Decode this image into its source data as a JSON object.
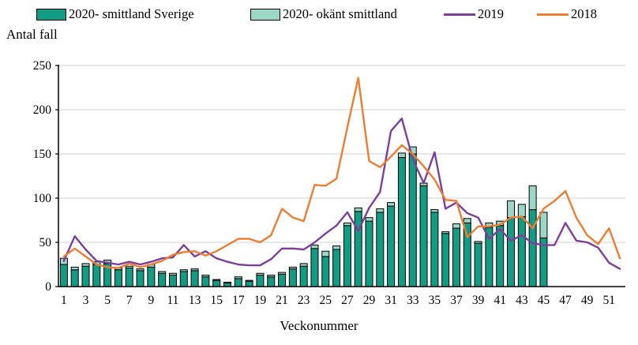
{
  "legend": [
    {
      "label": "2020- smittland Sverige",
      "type": "bar",
      "color": "#129C84"
    },
    {
      "label": "2020- okänt smittland",
      "type": "bar",
      "color": "#9CD6C6"
    },
    {
      "label": "2019",
      "type": "line",
      "color": "#7C3F9A"
    },
    {
      "label": "2018",
      "type": "line",
      "color": "#ED7D31"
    }
  ],
  "y_axis_title": "Antal fall",
  "x_axis_title": "Veckonummer",
  "chart_data": {
    "type": "bar+line combo",
    "title": "",
    "xlabel": "Veckonummer",
    "ylabel": "Antal fall",
    "ylim": [
      0,
      250
    ],
    "y_ticks": [
      0,
      50,
      100,
      150,
      200,
      250
    ],
    "x_weeks": 52,
    "x_tick_labels": [
      "1",
      "3",
      "5",
      "7",
      "9",
      "11",
      "13",
      "15",
      "17",
      "19",
      "21",
      "23",
      "25",
      "27",
      "29",
      "31",
      "33",
      "35",
      "37",
      "39",
      "41",
      "43",
      "45",
      "47",
      "49",
      "51"
    ],
    "grid": "horizontal, light gray",
    "legend_position": "top",
    "colors": {
      "bar_dark": "#129C84",
      "bar_light": "#9CD6C6",
      "bar_outline": "#000000",
      "line_2019": "#7C3F9A",
      "line_2018": "#ED7D31",
      "gridline": "#D9D9D9",
      "axis": "#000000"
    },
    "bar_series": [
      {
        "name": "2020- smittland Sverige",
        "values": [
          25,
          19,
          23,
          25,
          26,
          19,
          21,
          18,
          22,
          15,
          13,
          17,
          18,
          11,
          7,
          4,
          9,
          6,
          13,
          11,
          14,
          20,
          23,
          43,
          34,
          42,
          69,
          85,
          74,
          84,
          91,
          146,
          150,
          114,
          84,
          60,
          66,
          72,
          49,
          67,
          69,
          78,
          79,
          87,
          55,
          null,
          null,
          null,
          null,
          null,
          null,
          null
        ]
      },
      {
        "name": "2020- okänt smittland",
        "values": [
          7,
          3,
          3,
          3,
          4,
          2,
          2,
          2,
          3,
          2,
          2,
          2,
          2,
          2,
          1,
          1,
          2,
          1,
          2,
          2,
          2,
          2,
          3,
          4,
          6,
          4,
          3,
          4,
          4,
          4,
          4,
          5,
          8,
          3,
          3,
          2,
          5,
          5,
          2,
          5,
          5,
          19,
          14,
          27,
          29,
          null,
          null,
          null,
          null,
          null,
          null,
          null
        ]
      }
    ],
    "line_series": [
      {
        "name": "2019",
        "values": [
          29,
          57,
          42,
          29,
          27,
          25,
          28,
          25,
          28,
          32,
          33,
          47,
          34,
          40,
          32,
          28,
          25,
          24,
          24,
          31,
          43,
          43,
          42,
          50,
          60,
          69,
          84,
          63,
          89,
          107,
          176,
          190,
          144,
          117,
          152,
          88,
          95,
          83,
          78,
          54,
          65,
          52,
          58,
          49,
          47,
          47,
          72,
          52,
          50,
          44,
          27,
          20
        ]
      },
      {
        "name": "2018",
        "values": [
          34,
          43,
          34,
          25,
          22,
          21,
          26,
          22,
          25,
          29,
          36,
          39,
          40,
          35,
          40,
          47,
          54,
          54,
          50,
          58,
          88,
          78,
          74,
          115,
          114,
          122,
          180,
          236,
          142,
          135,
          147,
          160,
          150,
          136,
          121,
          98,
          97,
          56,
          68,
          68,
          70,
          78,
          79,
          66,
          88,
          97,
          108,
          78,
          58,
          48,
          66,
          32
        ]
      }
    ]
  }
}
